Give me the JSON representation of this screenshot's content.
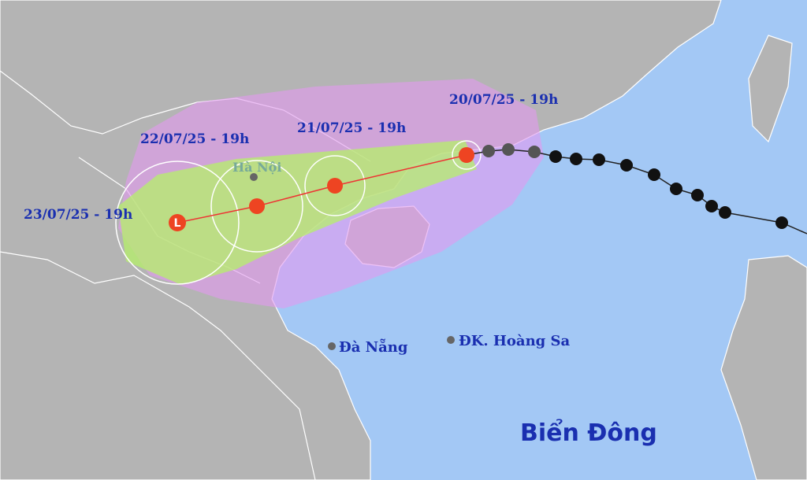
{
  "forecast_points": [
    {
      "label": "20/07/25 - 19h"
    },
    {
      "label": "21/07/25 - 19h"
    },
    {
      "label": "22/07/25 - 19h"
    },
    {
      "label": "23/07/25 - 19h",
      "symbol": "L"
    }
  ],
  "places": [
    {
      "name": "Hà Nội"
    },
    {
      "name": "Đà Nẵng"
    },
    {
      "name": "ĐK. Hoàng Sa"
    }
  ],
  "sea_label": "Biển Đông"
}
